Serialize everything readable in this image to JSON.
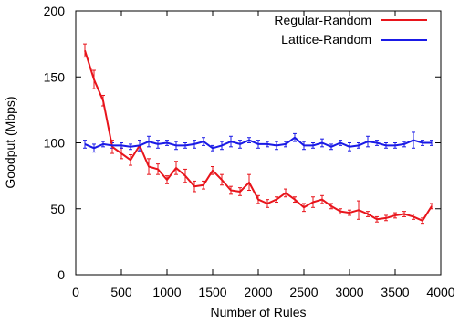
{
  "chart_data": {
    "type": "line",
    "title": "",
    "xlabel": "Number of Rules",
    "ylabel": "Goodput (Mbps)",
    "xlim": [
      0,
      4000
    ],
    "ylim": [
      0,
      200
    ],
    "x_ticks": [
      0,
      500,
      1000,
      1500,
      2000,
      2500,
      3000,
      3500,
      4000
    ],
    "y_ticks": [
      0,
      50,
      100,
      150,
      200
    ],
    "grid": false,
    "legend_position": "top-right",
    "x": [
      100,
      200,
      300,
      400,
      500,
      600,
      700,
      800,
      900,
      1000,
      1100,
      1200,
      1300,
      1400,
      1500,
      1600,
      1700,
      1800,
      1900,
      2000,
      2100,
      2200,
      2300,
      2400,
      2500,
      2600,
      2700,
      2800,
      2900,
      3000,
      3100,
      3200,
      3300,
      3400,
      3500,
      3600,
      3700,
      3800,
      3900
    ],
    "series": [
      {
        "name": "Regular-Random",
        "color": "#e8141b",
        "values": [
          170,
          148,
          132,
          97,
          92,
          87,
          98,
          82,
          80,
          72,
          81,
          75,
          67,
          68,
          79,
          72,
          64,
          63,
          70,
          57,
          54,
          57,
          62,
          57,
          51,
          55,
          57,
          52,
          48,
          47,
          49,
          46,
          42,
          43,
          45,
          46,
          44,
          41,
          52
        ],
        "error": [
          5,
          7,
          4,
          5,
          4,
          4,
          4,
          6,
          4,
          3,
          5,
          5,
          4,
          3,
          3,
          4,
          3,
          3,
          6,
          3,
          3,
          2,
          3,
          2,
          3,
          4,
          3,
          2,
          2,
          2,
          7,
          2,
          2,
          2,
          2,
          2,
          2,
          2,
          2
        ]
      },
      {
        "name": "Lattice-Random",
        "color": "#1a1ae6",
        "values": [
          99,
          96,
          99,
          98,
          98,
          97,
          98,
          101,
          99,
          100,
          98,
          98,
          99,
          101,
          96,
          98,
          101,
          99,
          102,
          99,
          99,
          98,
          99,
          104,
          98,
          98,
          100,
          97,
          100,
          97,
          98,
          101,
          100,
          98,
          98,
          99,
          102,
          100,
          100
        ],
        "error": [
          3,
          3,
          2,
          2,
          2,
          2,
          4,
          4,
          3,
          2,
          3,
          2,
          3,
          3,
          2,
          3,
          4,
          3,
          2,
          3,
          2,
          3,
          2,
          3,
          3,
          2,
          3,
          2,
          2,
          3,
          2,
          4,
          2,
          2,
          2,
          2,
          6,
          2,
          2
        ]
      }
    ]
  }
}
